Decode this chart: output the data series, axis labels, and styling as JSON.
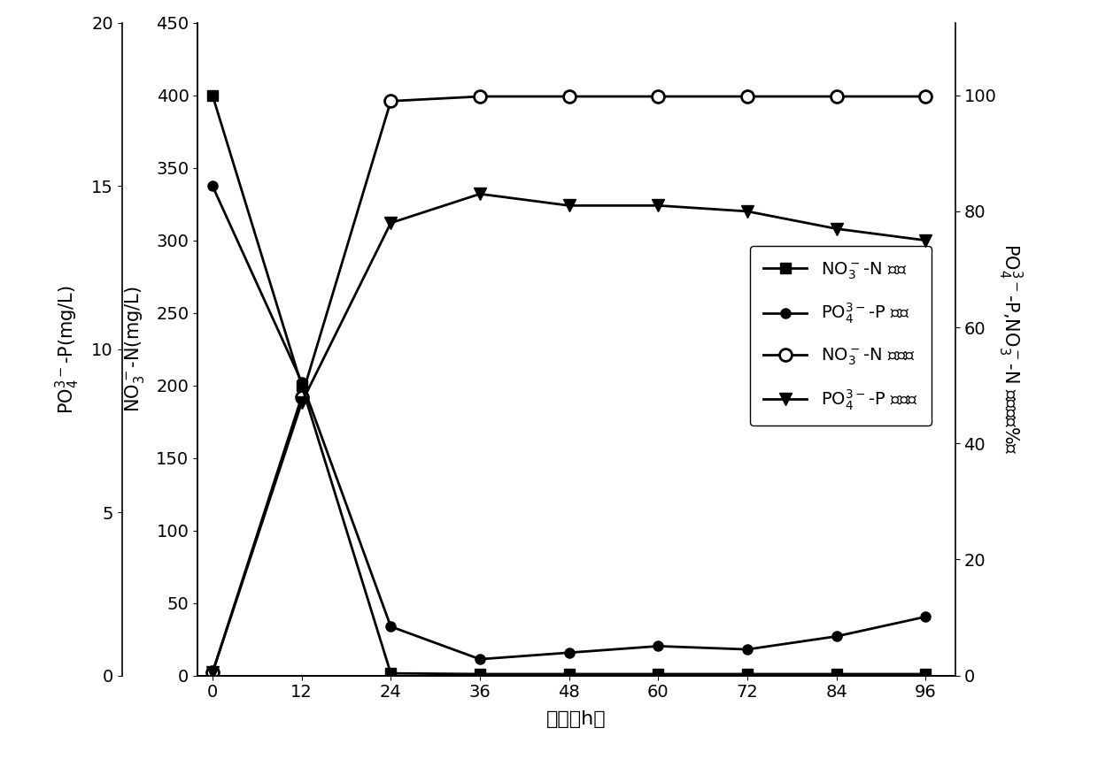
{
  "x": [
    0,
    12,
    24,
    36,
    48,
    60,
    72,
    84,
    96
  ],
  "no3_conc": [
    400,
    200,
    1.5,
    1.0,
    1.0,
    1.0,
    1.0,
    1.0,
    1.0
  ],
  "po4_conc": [
    15.0,
    9.0,
    1.5,
    0.5,
    0.7,
    0.9,
    0.8,
    1.2,
    1.8
  ],
  "no3_removal": [
    0.5,
    48,
    99.0,
    99.8,
    99.8,
    99.8,
    99.8,
    99.8,
    99.8
  ],
  "po4_removal": [
    0.5,
    47,
    78,
    83,
    81,
    81,
    80,
    77,
    75
  ],
  "left_ylim": [
    0,
    20
  ],
  "left_yticks": [
    0,
    5,
    10,
    15,
    20
  ],
  "no3_ylim": [
    0,
    450
  ],
  "no3_yticks": [
    0,
    50,
    100,
    150,
    200,
    250,
    300,
    350,
    400,
    450
  ],
  "right_ylim": [
    0,
    112.5
  ],
  "right_yticks": [
    0,
    20,
    40,
    60,
    80,
    100
  ],
  "xlim": [
    -2,
    100
  ],
  "xticks": [
    0,
    12,
    24,
    36,
    48,
    60,
    72,
    84,
    96
  ],
  "xlabel": "时间（h）",
  "left_ylabel": "PO$_4^{3-}$-P(mg/L)",
  "no3_ylabel": "NO$_3^-$-N(mg/L)",
  "right_ylabel": "PO$_4^{3-}$-P,NO$_3^-$-N 去除率（%）",
  "legend_no3_conc": "NO$_3^-$-N 浓度",
  "legend_po4_conc": "PO$_4^{3-}$-P 浓度",
  "legend_no3_rate": "NO$_3^-$-N 去除率",
  "legend_po4_rate": "PO$_4^{3-}$-P 去除率",
  "line_color": "#000000",
  "background_color": "#ffffff",
  "fontsize": 15,
  "tick_fontsize": 14,
  "linewidth": 2.0,
  "markersize": 8
}
